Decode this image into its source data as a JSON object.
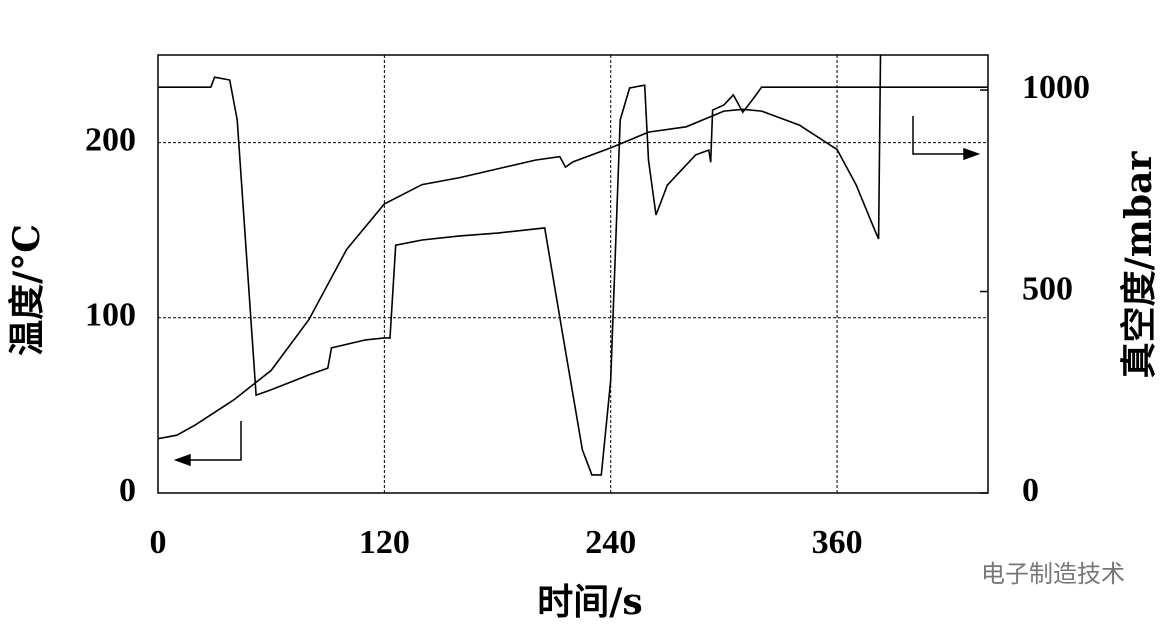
{
  "chart_data": {
    "type": "line",
    "x_label": "时间/s",
    "y_label": "温度/°C",
    "y2_label": "真空度/mbar",
    "watermark": "电子制造技术",
    "xlim": [
      0,
      440
    ],
    "xticks": [
      0,
      120,
      240,
      360
    ],
    "ylim": [
      0,
      250
    ],
    "yticks": [
      0,
      100,
      200
    ],
    "y2lim": [
      0,
      1087
    ],
    "y2ticks": [
      0,
      500,
      1000
    ],
    "grid": true,
    "series": [
      {
        "name": "温度",
        "color": "#000000",
        "x": [
          0,
          10,
          20,
          40,
          60,
          80,
          100,
          120,
          140,
          160,
          180,
          200,
          213,
          216,
          220,
          240,
          260,
          280,
          300,
          310,
          320,
          340,
          360,
          370,
          380,
          382,
          383
        ],
        "values": [
          31,
          33,
          39,
          53,
          70,
          99,
          139,
          165,
          176,
          180,
          185,
          190,
          192,
          186,
          189,
          197,
          206,
          209,
          218,
          219,
          218,
          210,
          196,
          176,
          150,
          145,
          250
        ]
      },
      {
        "name": "真空度",
        "color": "#000000",
        "axis": "y2",
        "x": [
          0,
          28,
          30,
          38,
          42,
          52,
          60,
          80,
          90,
          92,
          110,
          120,
          123,
          126,
          140,
          160,
          180,
          205,
          215,
          225,
          230,
          235,
          240,
          245,
          250,
          258,
          260,
          264,
          270,
          285,
          292,
          293,
          294,
          300,
          305,
          310,
          315,
          320,
          440
        ],
        "values": [
          1007,
          1007,
          1032,
          1025,
          926,
          243,
          256,
          293,
          310,
          360,
          380,
          385,
          385,
          615,
          628,
          638,
          645,
          658,
          380,
          107,
          45,
          45,
          280,
          926,
          1005,
          1012,
          826,
          690,
          764,
          839,
          851,
          821,
          950,
          963,
          988,
          945,
          975,
          1007,
          1007
        ]
      }
    ]
  }
}
